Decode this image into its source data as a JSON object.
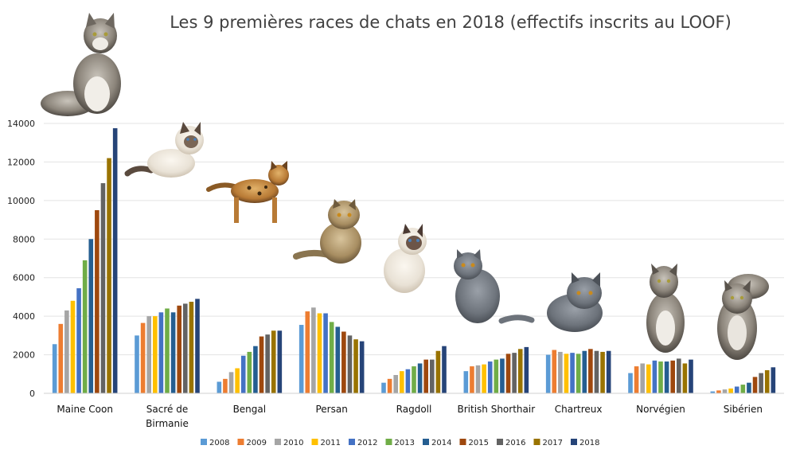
{
  "chart_data": {
    "type": "bar",
    "title": "Les 9 premières races de chats en 2018 (effectifs inscrits au LOOF)",
    "categories": [
      "Maine Coon",
      "Sacré de Birmanie",
      "Bengal",
      "Persan",
      "Ragdoll",
      "British Shorthair",
      "Chartreux",
      "Norvégien",
      "Sibérien"
    ],
    "category_lines": [
      [
        "Maine Coon"
      ],
      [
        "Sacré de",
        "Birmanie"
      ],
      [
        "Bengal"
      ],
      [
        "Persan"
      ],
      [
        "Ragdoll"
      ],
      [
        "British Shorthair"
      ],
      [
        "Chartreux"
      ],
      [
        "Norvégien"
      ],
      [
        "Sibérien"
      ]
    ],
    "ylim": [
      0,
      14000
    ],
    "yticks": [
      0,
      2000,
      4000,
      6000,
      8000,
      10000,
      12000,
      14000
    ],
    "grid": true,
    "legend_position": "bottom",
    "series": [
      {
        "name": "2008",
        "color": "#5b9bd5",
        "values": [
          2550,
          3000,
          600,
          3550,
          550,
          1150,
          2000,
          1050,
          100
        ]
      },
      {
        "name": "2009",
        "color": "#ed7d31",
        "values": [
          3600,
          3650,
          750,
          4250,
          750,
          1400,
          2250,
          1400,
          150
        ]
      },
      {
        "name": "2010",
        "color": "#a5a5a5",
        "values": [
          4300,
          4000,
          1100,
          4450,
          950,
          1450,
          2150,
          1550,
          200
        ]
      },
      {
        "name": "2011",
        "color": "#ffc000",
        "values": [
          4800,
          4000,
          1300,
          4150,
          1150,
          1500,
          2050,
          1500,
          250
        ]
      },
      {
        "name": "2012",
        "color": "#4472c4",
        "values": [
          5450,
          4200,
          1950,
          4150,
          1250,
          1650,
          2100,
          1700,
          350
        ]
      },
      {
        "name": "2013",
        "color": "#70ad47",
        "values": [
          6900,
          4400,
          2150,
          3700,
          1400,
          1750,
          2050,
          1650,
          450
        ]
      },
      {
        "name": "2014",
        "color": "#255e91",
        "values": [
          8000,
          4200,
          2450,
          3450,
          1550,
          1800,
          2200,
          1650,
          550
        ]
      },
      {
        "name": "2015",
        "color": "#9e480e",
        "values": [
          9500,
          4550,
          2950,
          3200,
          1750,
          2050,
          2300,
          1700,
          850
        ]
      },
      {
        "name": "2016",
        "color": "#636363",
        "values": [
          10900,
          4650,
          3050,
          3000,
          1750,
          2100,
          2200,
          1800,
          1050
        ]
      },
      {
        "name": "2017",
        "color": "#997300",
        "values": [
          12200,
          4750,
          3250,
          2800,
          2200,
          2300,
          2150,
          1550,
          1200
        ]
      },
      {
        "name": "2018",
        "color": "#264478",
        "values": [
          13750,
          4900,
          3250,
          2700,
          2450,
          2400,
          2200,
          1750,
          1350
        ]
      }
    ]
  }
}
